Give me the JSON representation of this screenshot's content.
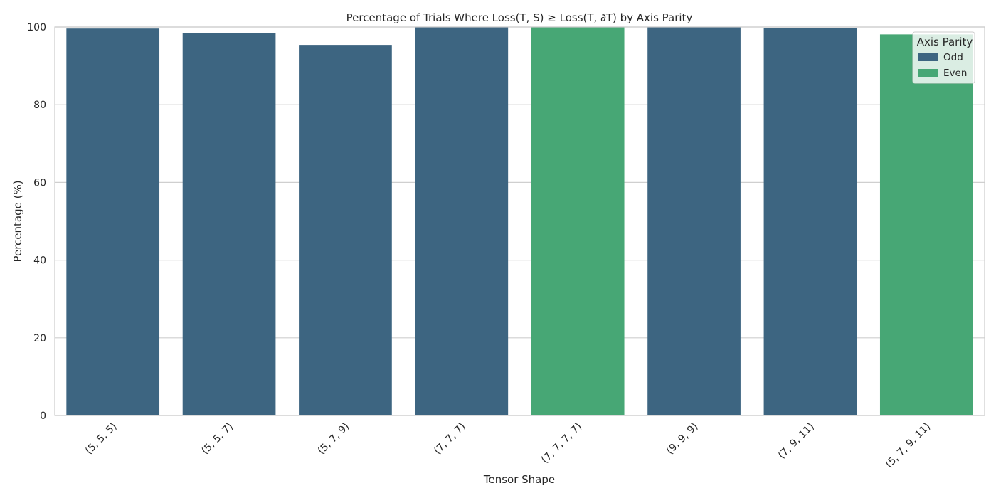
{
  "chart_data": {
    "type": "bar",
    "title": "Percentage of Trials Where Loss(T, S) ≥ Loss(T, ∂T) by Axis Parity",
    "xlabel": "Tensor Shape",
    "ylabel": "Percentage (%)",
    "ylim": [
      0,
      100
    ],
    "yticks": [
      0,
      20,
      40,
      60,
      80,
      100
    ],
    "grid": "horizontal",
    "legend_position": "top-right",
    "legend_title": "Axis Parity",
    "categories": [
      "(5, 5, 5)",
      "(5, 5, 7)",
      "(5, 7, 9)",
      "(7, 7, 7)",
      "(7, 7, 7, 7)",
      "(9, 9, 9)",
      "(7, 9, 11)",
      "(5, 7, 9, 11)"
    ],
    "values": [
      99.6,
      98.5,
      95.4,
      100,
      100,
      100,
      99.8,
      98.1
    ],
    "parity": [
      "Odd",
      "Odd",
      "Odd",
      "Odd",
      "Even",
      "Odd",
      "Odd",
      "Even"
    ],
    "series": [
      {
        "name": "Odd",
        "color": "#3d6581"
      },
      {
        "name": "Even",
        "color": "#47a775"
      }
    ]
  }
}
